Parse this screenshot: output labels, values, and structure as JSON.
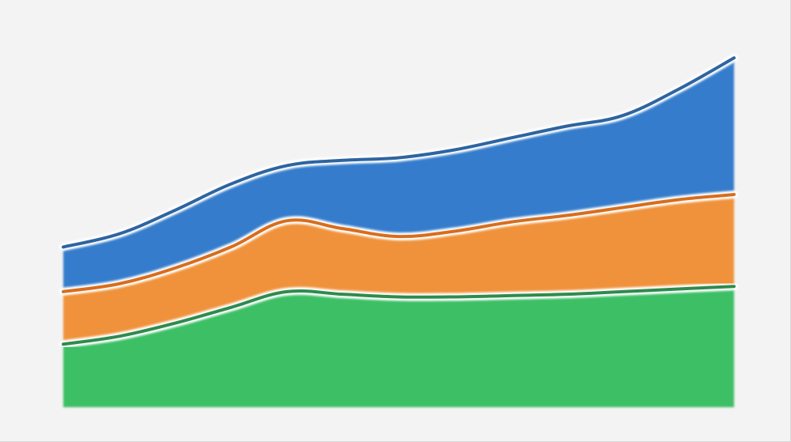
{
  "chart_data": {
    "type": "area",
    "stacked": true,
    "x": [
      0,
      1,
      2,
      3,
      4,
      5,
      6,
      7,
      8,
      9,
      10,
      11,
      12
    ],
    "series": [
      {
        "values": [
          24,
          27,
          32,
          38,
          44,
          43,
          42,
          42,
          42.5,
          43,
          44,
          45,
          46
        ],
        "color": "#3cbf65",
        "line_color": "#2e8b4e"
      },
      {
        "values": [
          20,
          20,
          21,
          23,
          27,
          25,
          23,
          25,
          28,
          30,
          32,
          34,
          35
        ],
        "color": "#f0923b",
        "line_color": "#d86d1c"
      },
      {
        "values": [
          17,
          19,
          22,
          24,
          21,
          26,
          30,
          31,
          32,
          34,
          35,
          42,
          52
        ],
        "color": "#347dcc",
        "line_color": "#2e64a0"
      }
    ],
    "ylim": [
      0,
      140
    ],
    "grid": false,
    "legend": "none"
  },
  "colors": {
    "background": "#f3f3f3",
    "stroke_halo": "#ffffff"
  }
}
